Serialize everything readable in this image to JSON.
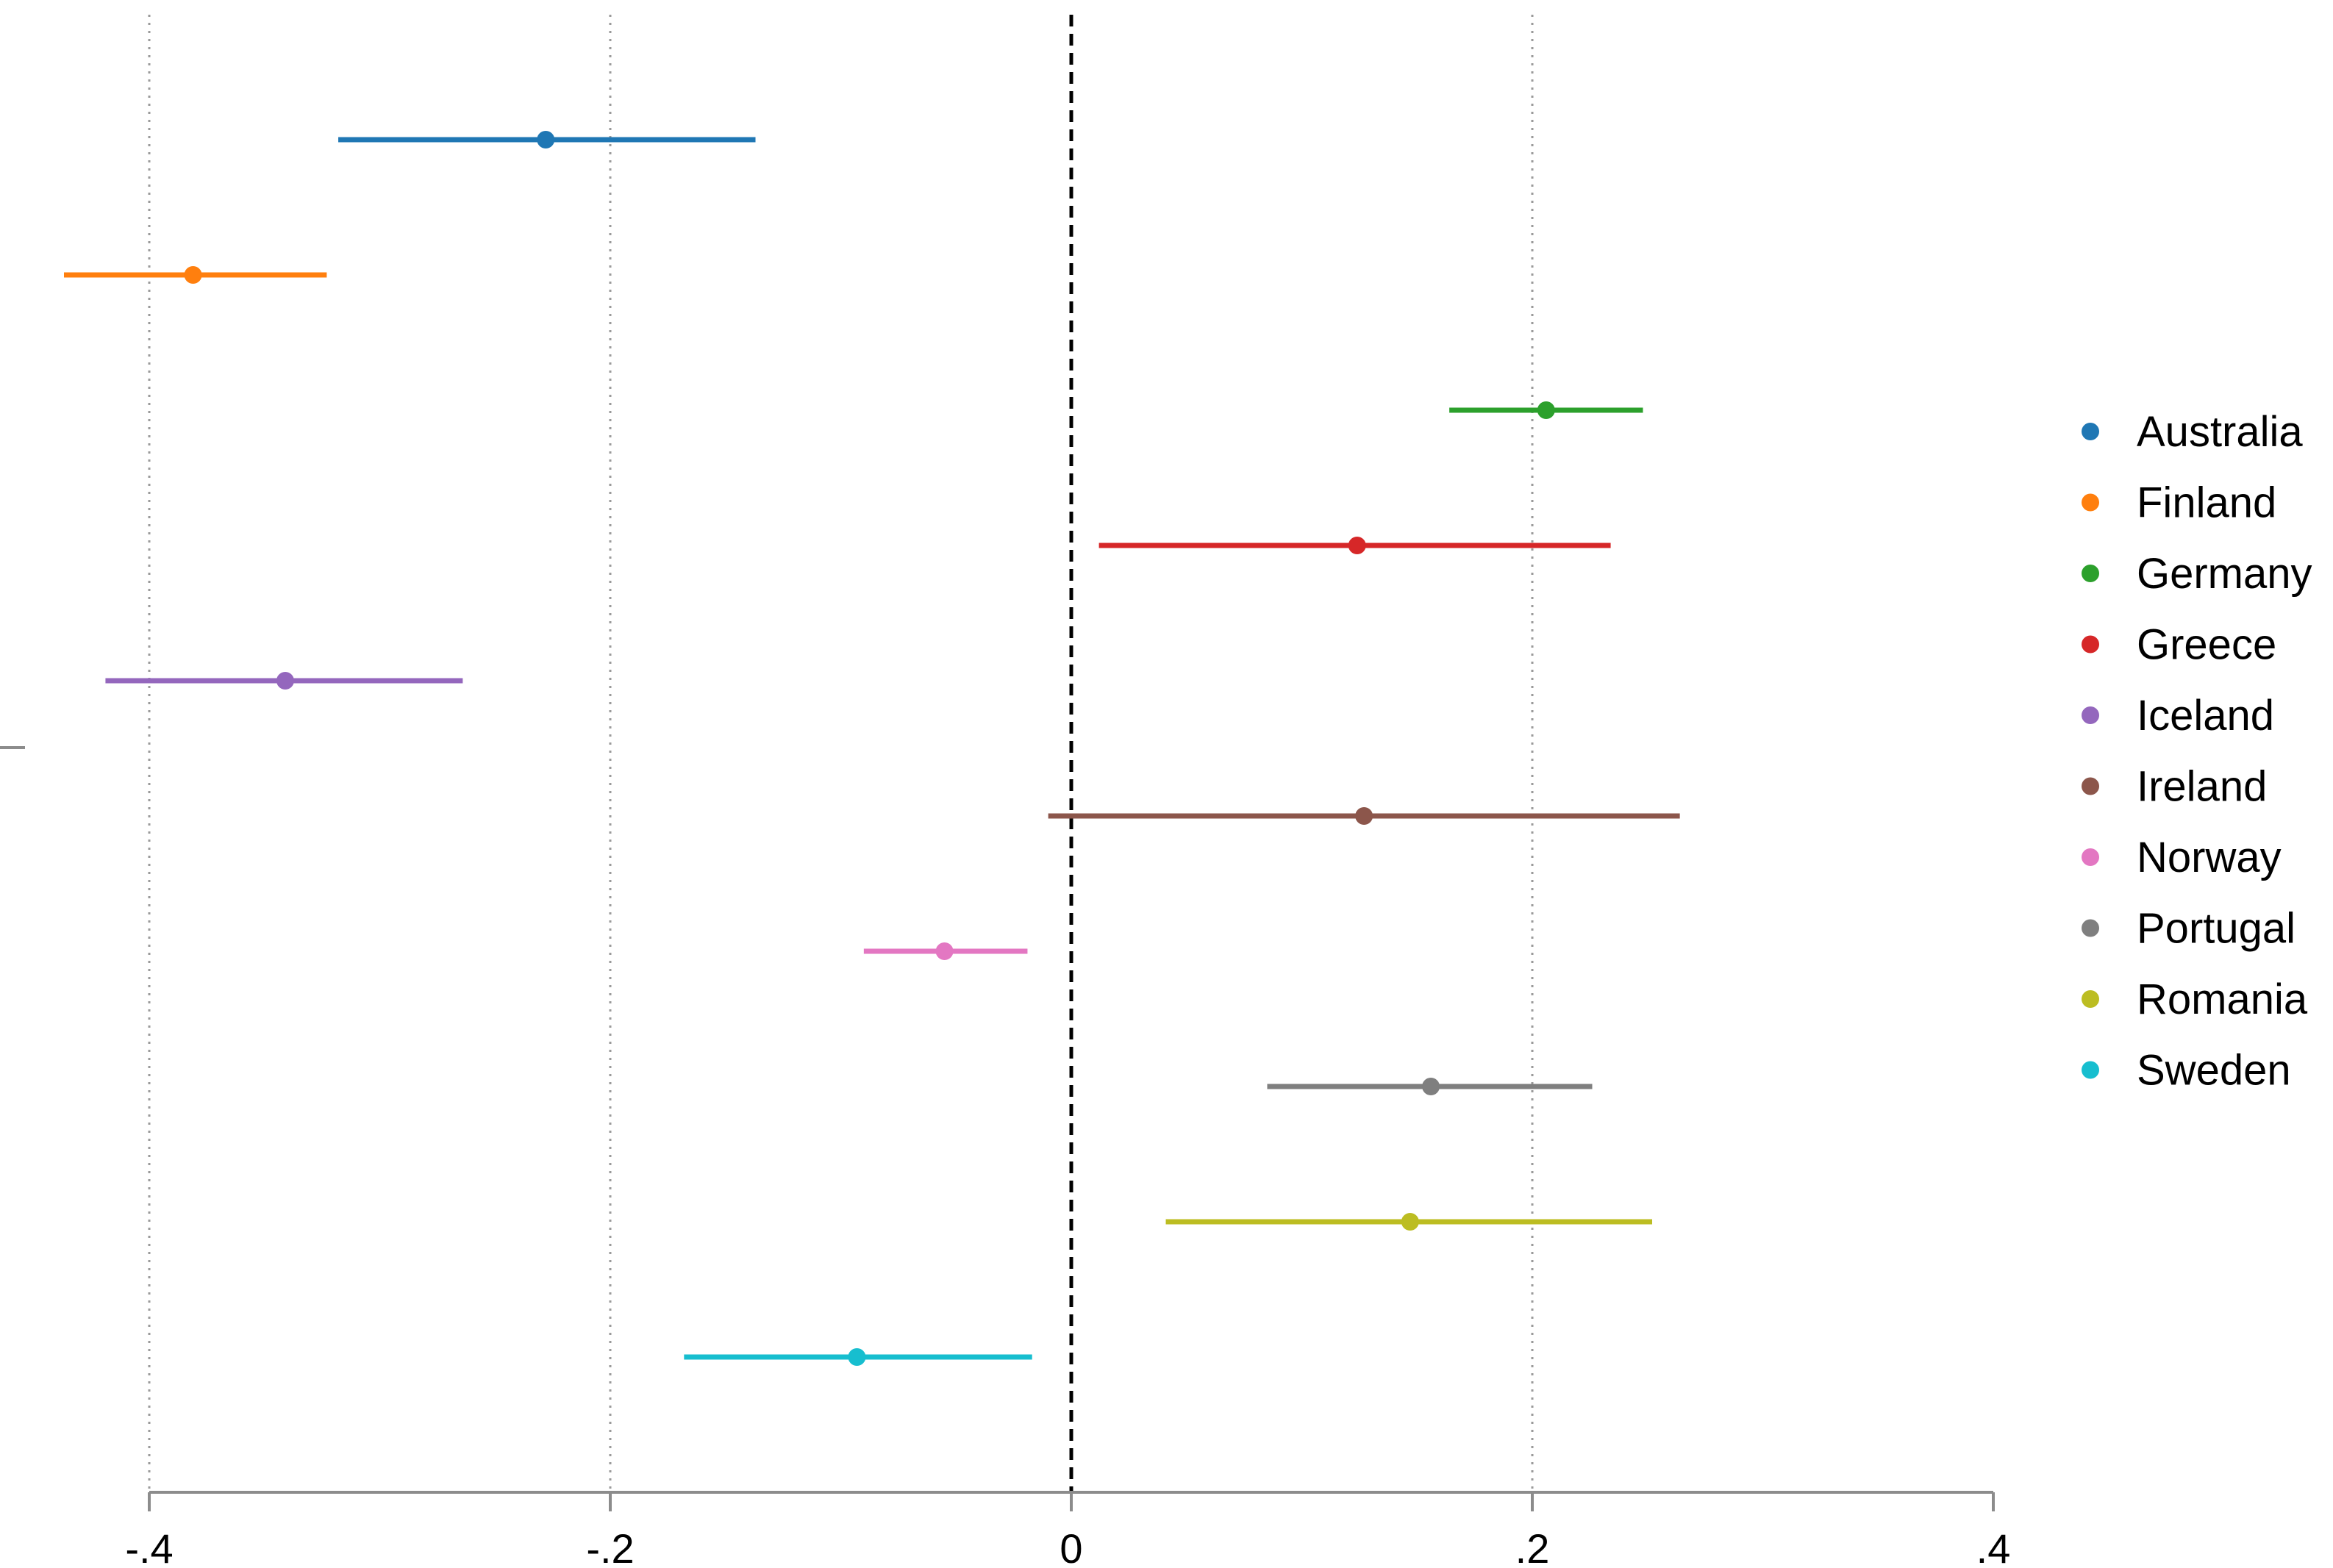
{
  "chart_data": {
    "type": "scatter",
    "subtype": "coefficient-plot-with-confidence-intervals",
    "title": "",
    "xlabel": "",
    "ylabel": "",
    "xlim": [
      -0.4,
      0.4
    ],
    "x_ticks": [
      {
        "value": -0.4,
        "label": "-.4"
      },
      {
        "value": -0.2,
        "label": "-.2"
      },
      {
        "value": 0,
        "label": "0"
      },
      {
        "value": 0.2,
        "label": ".2"
      },
      {
        "value": 0.4,
        "label": ".4"
      }
    ],
    "grid": {
      "x_dotted_at": [
        -0.4,
        -0.2,
        0.2
      ],
      "reference_line_at": 0,
      "reference_style": "dashed"
    },
    "legend": {
      "position": "right"
    },
    "series": [
      {
        "name": "Australia",
        "estimate": -0.228,
        "ci": [
          -0.318,
          -0.137
        ],
        "color": "#1f77b4"
      },
      {
        "name": "Finland",
        "estimate": -0.381,
        "ci": [
          -0.437,
          -0.323
        ],
        "color": "#ff7f0e"
      },
      {
        "name": "Germany",
        "estimate": 0.206,
        "ci": [
          0.164,
          0.248
        ],
        "color": "#2ca02c"
      },
      {
        "name": "Greece",
        "estimate": 0.124,
        "ci": [
          0.012,
          0.234
        ],
        "color": "#d62728"
      },
      {
        "name": "Iceland",
        "estimate": -0.341,
        "ci": [
          -0.419,
          -0.264
        ],
        "color": "#9467bd"
      },
      {
        "name": "Ireland",
        "estimate": 0.127,
        "ci": [
          -0.01,
          0.264
        ],
        "color": "#8c564b"
      },
      {
        "name": "Norway",
        "estimate": -0.055,
        "ci": [
          -0.09,
          -0.019
        ],
        "color": "#e377c2"
      },
      {
        "name": "Portugal",
        "estimate": 0.156,
        "ci": [
          0.085,
          0.226
        ],
        "color": "#7f7f7f"
      },
      {
        "name": "Romania",
        "estimate": 0.147,
        "ci": [
          0.041,
          0.252
        ],
        "color": "#bcbd22"
      },
      {
        "name": "Sweden",
        "estimate": -0.093,
        "ci": [
          -0.168,
          -0.017
        ],
        "color": "#17becf"
      }
    ]
  }
}
